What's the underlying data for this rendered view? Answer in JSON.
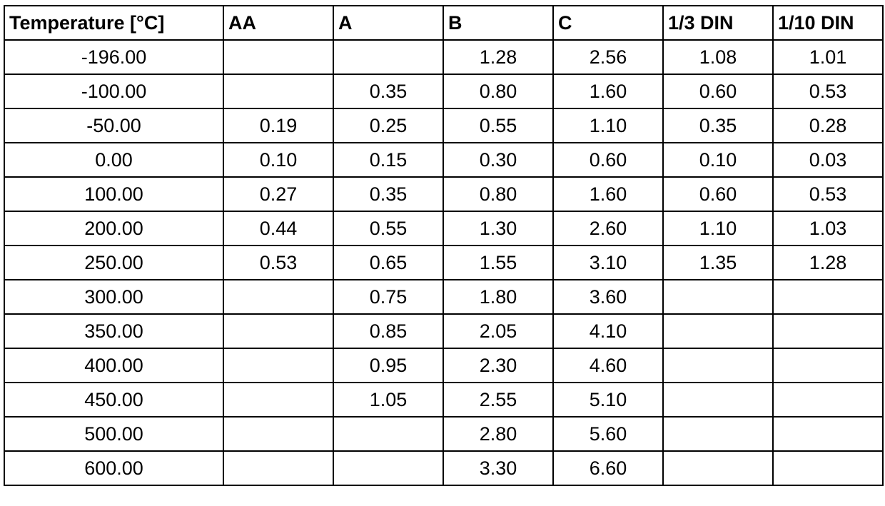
{
  "table": {
    "header": [
      "Temperature [°C]",
      "AA",
      "A",
      "B",
      "C",
      "1/3 DIN",
      "1/10 DIN"
    ],
    "rows": [
      [
        "-196.00",
        null,
        null,
        "1.28",
        "2.56",
        "1.08",
        "1.01"
      ],
      [
        "-100.00",
        null,
        "0.35",
        "0.80",
        "1.60",
        "0.60",
        "0.53"
      ],
      [
        "-50.00",
        "0.19",
        "0.25",
        "0.55",
        "1.10",
        "0.35",
        "0.28"
      ],
      [
        "0.00",
        "0.10",
        "0.15",
        "0.30",
        "0.60",
        "0.10",
        "0.03"
      ],
      [
        "100.00",
        "0.27",
        "0.35",
        "0.80",
        "1.60",
        "0.60",
        "0.53"
      ],
      [
        "200.00",
        "0.44",
        "0.55",
        "1.30",
        "2.60",
        "1.10",
        "1.03"
      ],
      [
        "250.00",
        "0.53",
        "0.65",
        "1.55",
        "3.10",
        "1.35",
        "1.28"
      ],
      [
        "300.00",
        null,
        "0.75",
        "1.80",
        "3.60",
        null,
        null
      ],
      [
        "350.00",
        null,
        "0.85",
        "2.05",
        "4.10",
        null,
        null
      ],
      [
        "400.00",
        null,
        "0.95",
        "2.30",
        "4.60",
        null,
        null
      ],
      [
        "450.00",
        null,
        "1.05",
        "2.55",
        "5.10",
        null,
        null
      ],
      [
        "500.00",
        null,
        null,
        "2.80",
        "5.60",
        null,
        null
      ],
      [
        "600.00",
        null,
        null,
        "3.30",
        "6.60",
        null,
        null
      ]
    ]
  }
}
